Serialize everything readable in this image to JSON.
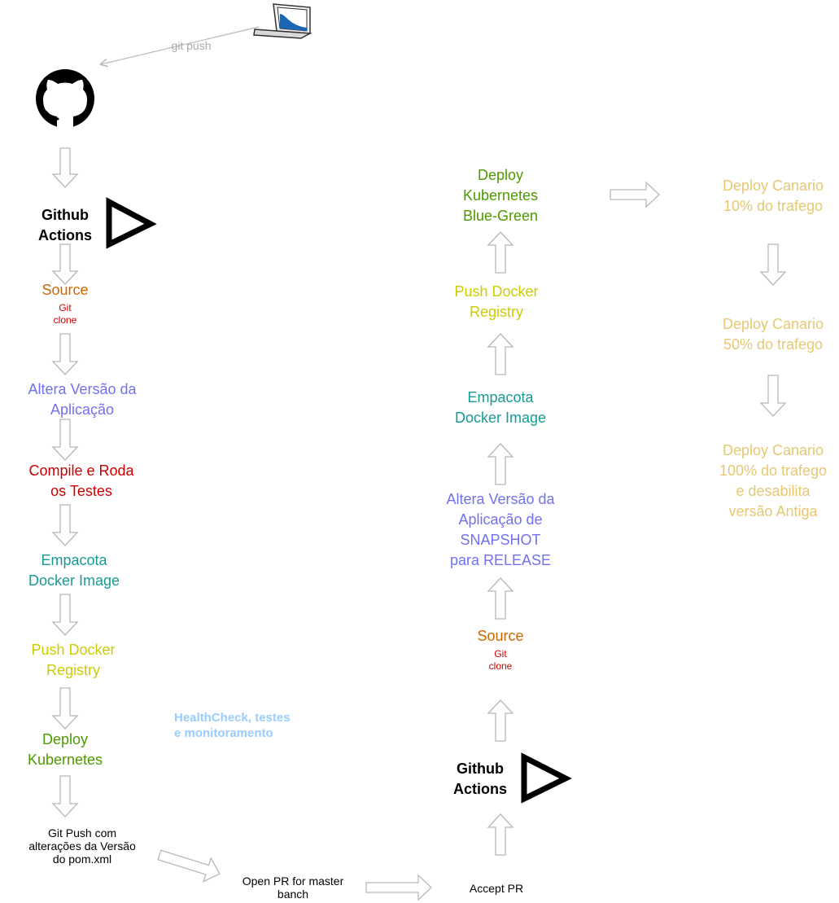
{
  "colors": {
    "source": "#cc6600",
    "altera": "#7070f0",
    "compile": "#cc0000",
    "empacota": "#159b96",
    "push": "#cccc00",
    "deploy": "#4d9900",
    "canario": "#e6c872",
    "healthcheck": "#99ccff",
    "arrow": "#b8b8b8",
    "git_push_text": "#aaaaaa"
  },
  "icons": {
    "laptop": "laptop-icon",
    "github": "github-icon",
    "play": "play-triangle-icon"
  },
  "top": {
    "git_push": "git push"
  },
  "left": {
    "actions_l1": "Github",
    "actions_l2": "Actions",
    "source": "Source",
    "git_clone_l1": "Git",
    "git_clone_l2": "clone",
    "altera_l1": "Altera Versão da",
    "altera_l2": "Aplicação",
    "compile_l1": "Compile e Roda",
    "compile_l2": "os Testes",
    "empacota_l1": "Empacota",
    "empacota_l2": "Docker Image",
    "push_l1": "Push Docker",
    "push_l2": "Registry",
    "deploy_l1": "Deploy",
    "deploy_l2": "Kubernetes",
    "gitpush_l1": "Git Push com",
    "gitpush_l2": "alterações da Versão",
    "gitpush_l3": "do pom.xml"
  },
  "middle": {
    "healthcheck_l1": "HealthCheck, testes",
    "healthcheck_l2": "e monitoramento",
    "openpr_l1": "Open PR for master",
    "openpr_l2": "banch",
    "accept_pr": "Accept PR"
  },
  "right": {
    "actions_l1": "Github",
    "actions_l2": "Actions",
    "source": "Source",
    "git_clone_l1": "Git",
    "git_clone_l2": "clone",
    "altera_l1": "Altera Versão da",
    "altera_l2": "Aplicação de",
    "altera_l3": "SNAPSHOT",
    "altera_l4": "para RELEASE",
    "empacota_l1": "Empacota",
    "empacota_l2": "Docker Image",
    "push_l1": "Push Docker",
    "push_l2": "Registry",
    "deploy_l1": "Deploy",
    "deploy_l2": "Kubernetes",
    "deploy_l3": "Blue-Green"
  },
  "canario": {
    "c10_l1": "Deploy Canario",
    "c10_l2": "10% do trafego",
    "c50_l1": "Deploy Canario",
    "c50_l2": "50% do trafego",
    "c100_l1": "Deploy Canario",
    "c100_l2": "100% do trafego",
    "c100_l3": "e desabilita",
    "c100_l4": "versão Antiga"
  }
}
